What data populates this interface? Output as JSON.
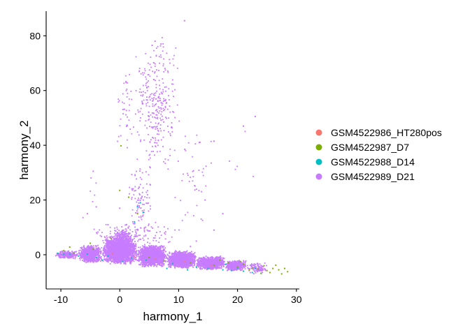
{
  "chart_data": {
    "type": "scatter",
    "xlabel": "harmony_1",
    "ylabel": "harmony_2",
    "xlim": [
      -12.5,
      30.5
    ],
    "ylim": [
      -12.5,
      89
    ],
    "xticks": [
      -10,
      0,
      10,
      20,
      30
    ],
    "yticks": [
      0,
      20,
      40,
      60,
      80
    ],
    "grid": false,
    "legend_position": "right",
    "series": [
      {
        "name": "GSM4522986_HT280pos",
        "color": "#F8766D",
        "points": [
          [
            -1.2,
            0.4
          ],
          [
            2.5,
            -0.8
          ],
          [
            6.0,
            -1.6
          ],
          [
            11.0,
            -2.5
          ],
          [
            15.5,
            -3.8
          ]
        ]
      },
      {
        "name": "GSM4522987_D7",
        "color": "#7CAE00",
        "points": [
          [
            -9.5,
            1.5
          ],
          [
            -8.5,
            2.8
          ],
          [
            -7.8,
            0.5
          ],
          [
            -5.0,
            4.2
          ],
          [
            -4.5,
            2.0
          ],
          [
            -1.5,
            6.0
          ],
          [
            0.2,
            39.8
          ],
          [
            0.0,
            23.5
          ],
          [
            1.5,
            21.0
          ],
          [
            3.0,
            15.0
          ],
          [
            5.0,
            -1.0
          ],
          [
            7.5,
            -2.2
          ],
          [
            12.0,
            -3.0
          ],
          [
            16.0,
            -3.8
          ],
          [
            18.5,
            -3.0
          ],
          [
            20.0,
            -4.5
          ],
          [
            21.0,
            -3.5
          ],
          [
            22.5,
            -4.8
          ],
          [
            23.5,
            -5.2
          ],
          [
            24.5,
            -4.0
          ],
          [
            25.0,
            -5.8
          ],
          [
            25.5,
            -6.5
          ],
          [
            26.0,
            -5.0
          ],
          [
            26.5,
            -3.8
          ],
          [
            27.0,
            -5.5
          ],
          [
            27.5,
            -7.0
          ],
          [
            28.0,
            -5.0
          ],
          [
            28.5,
            -6.2
          ],
          [
            24.0,
            -6.8
          ],
          [
            22.0,
            -5.5
          ],
          [
            20.5,
            -2.5
          ],
          [
            17.0,
            -2.0
          ]
        ]
      },
      {
        "name": "GSM4522988_D14",
        "color": "#00BFC4",
        "points": [
          [
            -10.5,
            0.5
          ],
          [
            -9.5,
            0.2
          ],
          [
            -8.5,
            0.3
          ],
          [
            -7.0,
            -0.5
          ],
          [
            -5.5,
            0.2
          ],
          [
            -4.0,
            -1.0
          ],
          [
            -2.0,
            -0.5
          ],
          [
            2.0,
            -1.2
          ],
          [
            4.5,
            -2.0
          ],
          [
            9.0,
            -3.2
          ],
          [
            13.0,
            -4.5
          ],
          [
            15.0,
            -5.0
          ],
          [
            17.5,
            -5.5
          ],
          [
            19.0,
            -5.8
          ],
          [
            21.0,
            -6.0
          ],
          [
            22.5,
            -6.5
          ],
          [
            24.0,
            -6.8
          ],
          [
            3.0,
            17.5
          ],
          [
            3.5,
            19.0
          ],
          [
            4.0,
            15.5
          ],
          [
            2.5,
            12.0
          ],
          [
            18.0,
            -3.5
          ],
          [
            20.0,
            -4.8
          ],
          [
            23.0,
            -5.0
          ],
          [
            11.5,
            -5.5
          ],
          [
            8.0,
            -5.0
          ],
          [
            0.5,
            -2.5
          ],
          [
            -3.0,
            -2.0
          ]
        ]
      },
      {
        "name": "GSM4522989_D21",
        "color": "#C77CFF",
        "density": [
          {
            "x": [
              -11.0,
              -7.0
            ],
            "y": [
              -1.5,
              1.5
            ],
            "n": 260
          },
          {
            "x": [
              -7.0,
              -3.0
            ],
            "y": [
              -3.0,
              3.5
            ],
            "n": 900
          },
          {
            "x": [
              -3.0,
              3.0
            ],
            "y": [
              -3.5,
              6.5
            ],
            "n": 2400
          },
          {
            "x": [
              -1.0,
              2.0
            ],
            "y": [
              4.0,
              9.5
            ],
            "n": 160
          },
          {
            "x": [
              3.0,
              8.0
            ],
            "y": [
              -4.5,
              3.5
            ],
            "n": 1700
          },
          {
            "x": [
              8.0,
              13.0
            ],
            "y": [
              -5.0,
              1.5
            ],
            "n": 1300
          },
          {
            "x": [
              13.0,
              18.0
            ],
            "y": [
              -5.5,
              -0.5
            ],
            "n": 900
          },
          {
            "x": [
              18.0,
              21.5
            ],
            "y": [
              -6.0,
              -2.0
            ],
            "n": 420
          },
          {
            "x": [
              21.5,
              25.0
            ],
            "y": [
              -7.0,
              -3.0
            ],
            "n": 110
          },
          {
            "x": [
              -6.0,
              10.0
            ],
            "y": [
              3.0,
              12.0
            ],
            "n": 150
          },
          {
            "x": [
              1.5,
              5.5
            ],
            "y": [
              8.0,
              35.0
            ],
            "n": 90
          },
          {
            "x": [
              2.5,
              10.0
            ],
            "y": [
              30.0,
              80.0
            ],
            "n": 300
          },
          {
            "x": [
              -1.0,
              3.0
            ],
            "y": [
              35.0,
              70.0
            ],
            "n": 45
          },
          {
            "x": [
              9.0,
              16.0
            ],
            "y": [
              8.0,
              50.0
            ],
            "n": 45
          },
          {
            "x": [
              -7.0,
              -3.0
            ],
            "y": [
              6.0,
              32.0
            ],
            "n": 6
          },
          {
            "x": [
              18.0,
              23.0
            ],
            "y": [
              20.0,
              51.0
            ],
            "n": 5
          }
        ],
        "points": [
          [
            11.0,
            85.5
          ],
          [
            6.0,
            78.0
          ],
          [
            5.5,
            76.5
          ],
          [
            7.0,
            77.0
          ],
          [
            23.0,
            50.5
          ],
          [
            21.0,
            47.0
          ],
          [
            16.0,
            41.5
          ],
          [
            13.5,
            41.0
          ],
          [
            -5.5,
            15.0
          ],
          [
            -4.5,
            30.5
          ],
          [
            -4.0,
            17.5
          ],
          [
            0.0,
            17.0
          ],
          [
            -2.0,
            11.0
          ],
          [
            14.5,
            20.0
          ],
          [
            17.5,
            15.0
          ],
          [
            16.0,
            9.0
          ],
          [
            13.0,
            5.0
          ],
          [
            12.0,
            3.0
          ]
        ]
      }
    ]
  }
}
